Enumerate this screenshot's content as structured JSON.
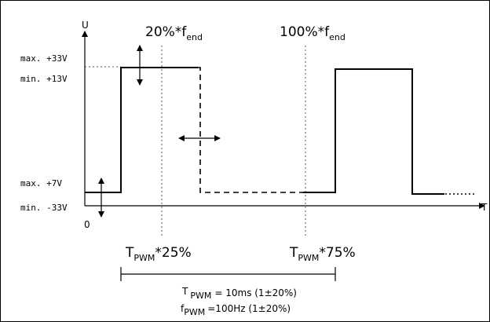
{
  "axes": {
    "y_label": "U",
    "x_label": "T",
    "origin": "0"
  },
  "voltage_levels": {
    "max_high": "max. +33V",
    "min_high": "min. +13V",
    "max_low": "max. +7V",
    "min_low": "min. -33V"
  },
  "markers": {
    "left_percent": "20%*f",
    "left_sub": "end",
    "right_percent": "100%*f",
    "right_sub": "end"
  },
  "period_labels": {
    "t_main": "T",
    "t_sub": "PWM",
    "left_suffix": "*25%",
    "right_suffix": "*75%"
  },
  "formulas": {
    "t_main": "T",
    "t_sub": "PWM",
    "t_value": "= 10ms (1±20%)",
    "f_main": "f",
    "f_sub": "PWM",
    "f_value": "=100Hz (1±20%)"
  }
}
